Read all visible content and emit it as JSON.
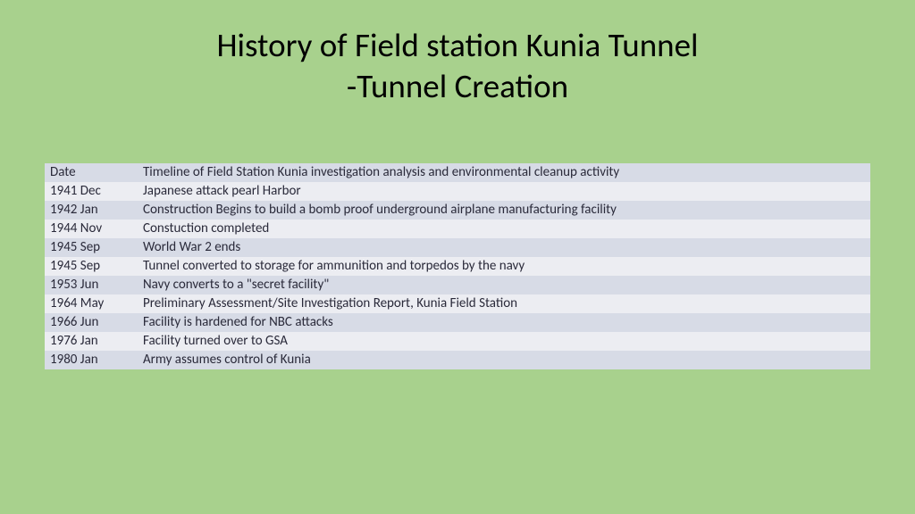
{
  "title_line1": "History of Field station Kunia Tunnel",
  "title_line2": "-Tunnel Creation",
  "table": {
    "header": {
      "date": "Date",
      "desc": "Timeline of Field Station Kunia investigation analysis and environmental cleanup activity"
    },
    "rows": [
      {
        "date": "1941 Dec",
        "desc": "Japanese attack pearl Harbor"
      },
      {
        "date": "1942 Jan",
        "desc": "Construction Begins to build a bomb proof underground airplane manufacturing facility"
      },
      {
        "date": "1944 Nov",
        "desc": "Constuction completed"
      },
      {
        "date": "1945 Sep",
        "desc": "World War 2 ends"
      },
      {
        "date": "1945 Sep",
        "desc": "Tunnel converted to storage for ammunition and torpedos by the navy"
      },
      {
        "date": "1953 Jun",
        "desc": "Navy converts to a \"secret facility\""
      },
      {
        "date": "1964 May",
        "desc": "Preliminary Assessment/Site Investigation Report, Kunia Field Station"
      },
      {
        "date": "1966 Jun",
        "desc": "Facility is hardened for NBC attacks"
      },
      {
        "date": "1976 Jan",
        "desc": "Facility turned over to GSA"
      },
      {
        "date": "1980 Jan",
        "desc": "Army assumes control of Kunia"
      }
    ]
  }
}
